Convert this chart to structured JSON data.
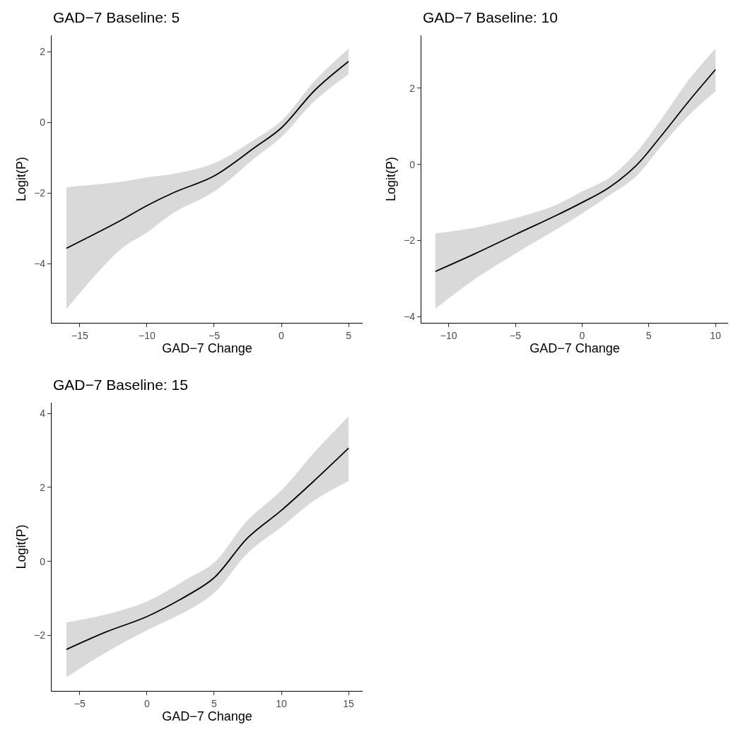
{
  "chart_data": [
    {
      "type": "line",
      "title": "GAD−7 Baseline: 5",
      "xlabel": "GAD−7 Change",
      "ylabel": "Logit(P)",
      "xlim": [
        -17.1,
        6.05
      ],
      "ylim": [
        -5.67,
        2.47
      ],
      "xticks": [
        -15,
        -10,
        -5,
        0,
        5
      ],
      "yticks": [
        -4,
        -2,
        0,
        2
      ],
      "x": [
        -16,
        -12,
        -10,
        -8,
        -5,
        -2,
        0,
        2.5,
        5
      ],
      "series": [
        {
          "color": "#000000",
          "values": [
            -3.56,
            -2.78,
            -2.35,
            -1.98,
            -1.51,
            -0.71,
            -0.15,
            0.92,
            1.73
          ],
          "lower": [
            -5.28,
            -3.6,
            -3.11,
            -2.55,
            -1.95,
            -1.01,
            -0.41,
            0.62,
            1.37
          ],
          "upper": [
            -1.83,
            -1.68,
            -1.55,
            -1.45,
            -1.15,
            -0.48,
            0.05,
            1.19,
            2.09
          ]
        }
      ]
    },
    {
      "type": "line",
      "title": "GAD−7 Baseline: 10",
      "xlabel": "GAD−7 Change",
      "ylabel": "Logit(P)",
      "xlim": [
        -12.05,
        10.95
      ],
      "ylim": [
        -4.16,
        3.39
      ],
      "xticks": [
        -10,
        -5,
        0,
        5,
        10
      ],
      "yticks": [
        -4,
        -2,
        0,
        2
      ],
      "x": [
        -11,
        -8,
        -5,
        -2,
        0,
        2,
        4,
        6,
        8,
        10
      ],
      "series": [
        {
          "color": "#000000",
          "values": [
            -2.81,
            -2.34,
            -1.84,
            -1.35,
            -1.0,
            -0.61,
            -0.05,
            0.78,
            1.66,
            2.49
          ],
          "lower": [
            -3.79,
            -3.0,
            -2.34,
            -1.72,
            -1.29,
            -0.82,
            -0.33,
            0.51,
            1.29,
            1.92
          ],
          "upper": [
            -1.81,
            -1.66,
            -1.41,
            -1.07,
            -0.71,
            -0.36,
            0.29,
            1.22,
            2.22,
            3.04
          ]
        }
      ]
    },
    {
      "type": "line",
      "title": "GAD−7 Baseline: 15",
      "xlabel": "GAD−7 Change",
      "ylabel": "Logit(P)",
      "xlim": [
        -7.1,
        16.05
      ],
      "ylim": [
        -3.5,
        4.29
      ],
      "xticks": [
        -5,
        0,
        5,
        10,
        15
      ],
      "yticks": [
        -2,
        0,
        2,
        4
      ],
      "x": [
        -6,
        -3,
        0,
        3,
        5,
        7.5,
        10,
        12.5,
        15
      ],
      "series": [
        {
          "color": "#000000",
          "values": [
            -2.38,
            -1.9,
            -1.49,
            -0.92,
            -0.44,
            0.64,
            1.38,
            2.2,
            3.06
          ],
          "lower": [
            -3.13,
            -2.45,
            -1.86,
            -1.33,
            -0.85,
            0.23,
            0.93,
            1.66,
            2.17
          ],
          "upper": [
            -1.65,
            -1.43,
            -1.08,
            -0.47,
            -0.03,
            1.12,
            1.92,
            2.97,
            3.92
          ]
        }
      ]
    }
  ]
}
